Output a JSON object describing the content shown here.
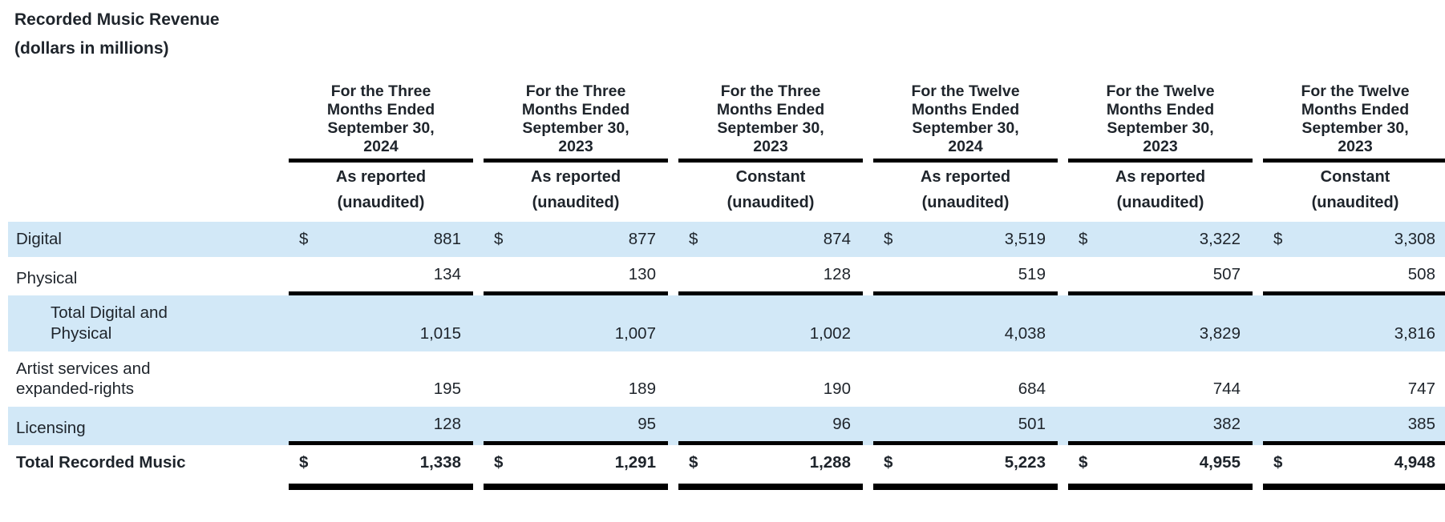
{
  "title": {
    "line1": "Recorded Music Revenue",
    "line2": "(dollars in millions)"
  },
  "colors": {
    "highlight": "#d2e8f7",
    "rule": "#000000",
    "text": "#1e242b"
  },
  "table": {
    "columns": [
      {
        "period": "For the Three Months Ended September 30, 2024",
        "basis": "As reported",
        "note": "(unaudited)"
      },
      {
        "period": "For the Three Months Ended September 30, 2023",
        "basis": "As reported",
        "note": "(unaudited)"
      },
      {
        "period": "For the Three Months Ended September 30, 2023",
        "basis": "Constant",
        "note": "(unaudited)"
      },
      {
        "period": "For the Twelve Months Ended September 30, 2024",
        "basis": "As reported",
        "note": "(unaudited)"
      },
      {
        "period": "For the Twelve Months Ended September 30, 2023",
        "basis": "As reported",
        "note": "(unaudited)"
      },
      {
        "period": "For the Twelve Months Ended September 30, 2023",
        "basis": "Constant",
        "note": "(unaudited)"
      }
    ],
    "currency_symbol": "$",
    "rows": [
      {
        "label": "Digital",
        "highlight": true,
        "dollar": true,
        "indent": false,
        "bold": false,
        "rule_below": false,
        "double_rule_below": false,
        "values": [
          "881",
          "877",
          "874",
          "3,519",
          "3,322",
          "3,308"
        ]
      },
      {
        "label": "Physical",
        "highlight": false,
        "dollar": false,
        "indent": false,
        "bold": false,
        "rule_below": true,
        "double_rule_below": false,
        "values": [
          "134",
          "130",
          "128",
          "519",
          "507",
          "508"
        ]
      },
      {
        "label": "Total Digital and Physical",
        "highlight": true,
        "dollar": false,
        "indent": true,
        "bold": false,
        "rule_below": false,
        "double_rule_below": false,
        "values": [
          "1,015",
          "1,007",
          "1,002",
          "4,038",
          "3,829",
          "3,816"
        ]
      },
      {
        "label": "Artist services and expanded-rights",
        "highlight": false,
        "dollar": false,
        "indent": false,
        "bold": false,
        "rule_below": false,
        "double_rule_below": false,
        "values": [
          "195",
          "189",
          "190",
          "684",
          "744",
          "747"
        ]
      },
      {
        "label": "Licensing",
        "highlight": true,
        "dollar": false,
        "indent": false,
        "bold": false,
        "rule_below": true,
        "double_rule_below": false,
        "values": [
          "128",
          "95",
          "96",
          "501",
          "382",
          "385"
        ]
      },
      {
        "label": "Total Recorded Music",
        "highlight": false,
        "dollar": true,
        "indent": false,
        "bold": true,
        "rule_below": false,
        "double_rule_below": true,
        "values": [
          "1,338",
          "1,291",
          "1,288",
          "5,223",
          "4,955",
          "4,948"
        ]
      }
    ]
  }
}
